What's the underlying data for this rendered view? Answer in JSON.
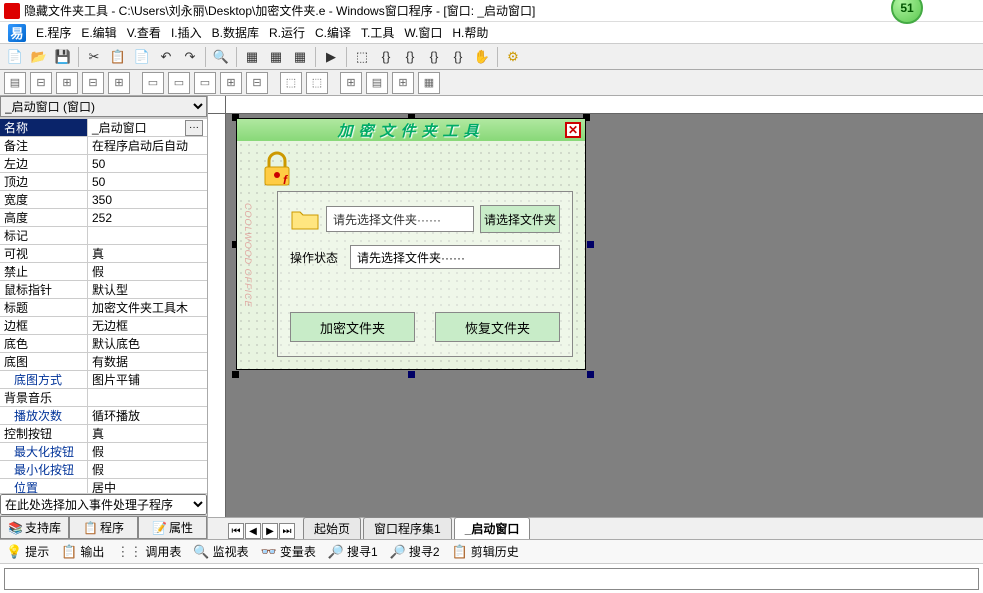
{
  "title": "隐藏文件夹工具 - C:\\Users\\刘永丽\\Desktop\\加密文件夹.e - Windows窗口程序 - [窗口: _启动窗口]",
  "badge": "51",
  "menu": [
    "E.程序",
    "E.编辑",
    "V.查看",
    "I.插入",
    "B.数据库",
    "R.运行",
    "C.编译",
    "T.工具",
    "W.窗口",
    "H.帮助"
  ],
  "combo": "_启动窗口 (窗口)",
  "props": [
    {
      "n": "名称",
      "v": "_启动窗口",
      "sel": true,
      "btn": true
    },
    {
      "n": "备注",
      "v": "在程序启动后自动"
    },
    {
      "n": "左边",
      "v": "50"
    },
    {
      "n": "顶边",
      "v": "50"
    },
    {
      "n": "宽度",
      "v": "350"
    },
    {
      "n": "高度",
      "v": "252"
    },
    {
      "n": "标记",
      "v": ""
    },
    {
      "n": "可视",
      "v": "真"
    },
    {
      "n": "禁止",
      "v": "假"
    },
    {
      "n": "鼠标指针",
      "v": "默认型"
    },
    {
      "n": "标题",
      "v": "加密文件夹工具木"
    },
    {
      "n": "边框",
      "v": "无边框"
    },
    {
      "n": "底色",
      "v": "默认底色"
    },
    {
      "n": "底图",
      "v": "有数据"
    },
    {
      "n": "底图方式",
      "v": "图片平铺",
      "indent": true
    },
    {
      "n": "背景音乐",
      "v": ""
    },
    {
      "n": "播放次数",
      "v": "循环播放",
      "indent": true
    },
    {
      "n": "控制按钮",
      "v": "真"
    },
    {
      "n": "最大化按钮",
      "v": "假",
      "indent": true
    },
    {
      "n": "最小化按钮",
      "v": "假",
      "indent": true
    },
    {
      "n": "位置",
      "v": "居中",
      "indent": true
    }
  ],
  "event_combo": "在此处选择加入事件处理子程序",
  "panel_buttons": [
    "支持库",
    "程序",
    "属性"
  ],
  "form": {
    "title": "加密文件夹工具",
    "path_placeholder": "请先选择文件夹······",
    "select_btn": "请选择文件夹",
    "status_label": "操作状态",
    "status_value": "请先选择文件夹······",
    "encrypt_btn": "加密文件夹",
    "restore_btn": "恢复文件夹",
    "left_deco": "COOLWOOD OFFICE"
  },
  "doc_tabs": [
    "起始页",
    "窗口程序集1",
    "_启动窗口"
  ],
  "bottom_tabs": [
    "提示",
    "输出",
    "调用表",
    "监视表",
    "变量表",
    "搜寻1",
    "搜寻2",
    "剪辑历史"
  ]
}
